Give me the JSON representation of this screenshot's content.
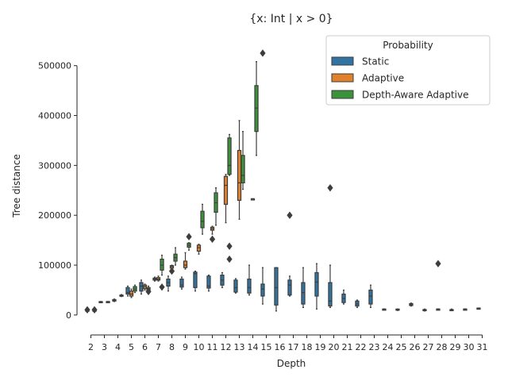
{
  "chart_data": {
    "type": "boxplot",
    "title": "{x: Int | x > 0}",
    "xlabel": "Depth",
    "ylabel": "Tree distance",
    "ylim": [
      -40000,
      560000
    ],
    "yticks": [
      0,
      100000,
      200000,
      300000,
      400000,
      500000
    ],
    "ytick_labels": [
      "0",
      "100000",
      "200000",
      "300000",
      "400000",
      "500000"
    ],
    "categories": [
      "2",
      "3",
      "4",
      "5",
      "6",
      "7",
      "8",
      "9",
      "10",
      "11",
      "12",
      "13",
      "14",
      "15",
      "16",
      "17",
      "18",
      "19",
      "20",
      "21",
      "22",
      "23",
      "24",
      "25",
      "26",
      "27",
      "28",
      "29",
      "30",
      "31"
    ],
    "legend": {
      "title": "Probability",
      "placement": "top-right",
      "entries": [
        "Static",
        "Adaptive",
        "Depth-Aware Adaptive"
      ]
    },
    "series": [
      {
        "name": "Static",
        "color": "#3274a1",
        "boxes": [
          {
            "cat": "2",
            "min": 10000,
            "q1": 10000,
            "median": 10000,
            "q3": 10000,
            "max": 10000,
            "outliers": [
              10500
            ]
          },
          {
            "cat": "3",
            "min": 26000,
            "q1": 26000,
            "median": 26000,
            "q3": 27000,
            "max": 27000,
            "outliers": []
          },
          {
            "cat": "4",
            "min": 27000,
            "q1": 28000,
            "median": 29000,
            "q3": 31000,
            "max": 32000,
            "outliers": []
          },
          {
            "cat": "5",
            "min": 38000,
            "q1": 42000,
            "median": 45000,
            "q3": 55000,
            "max": 58000,
            "outliers": []
          },
          {
            "cat": "6",
            "min": 42000,
            "q1": 48000,
            "median": 58000,
            "q3": 65000,
            "max": 70000,
            "outliers": []
          },
          {
            "cat": "7",
            "min": 68000,
            "q1": 70000,
            "median": 72000,
            "q3": 74000,
            "max": 76000,
            "outliers": []
          },
          {
            "cat": "8",
            "min": 48000,
            "q1": 58000,
            "median": 65000,
            "q3": 72000,
            "max": 78000,
            "outliers": []
          },
          {
            "cat": "9",
            "min": 52000,
            "q1": 56000,
            "median": 60000,
            "q3": 72000,
            "max": 76000,
            "outliers": []
          },
          {
            "cat": "10",
            "min": 48000,
            "q1": 55000,
            "median": 83000,
            "q3": 86000,
            "max": 88000,
            "outliers": []
          },
          {
            "cat": "11",
            "min": 48000,
            "q1": 54000,
            "median": 58000,
            "q3": 78000,
            "max": 80000,
            "outliers": []
          },
          {
            "cat": "12",
            "min": 55000,
            "q1": 60000,
            "median": 70000,
            "q3": 80000,
            "max": 85000,
            "outliers": []
          },
          {
            "cat": "13",
            "min": 44000,
            "q1": 46000,
            "median": 55000,
            "q3": 70000,
            "max": 73000,
            "outliers": []
          },
          {
            "cat": "14",
            "min": 40000,
            "q1": 44000,
            "median": 55000,
            "q3": 72000,
            "max": 100000,
            "outliers": []
          },
          {
            "cat": "15",
            "min": 22000,
            "q1": 38000,
            "median": 52000,
            "q3": 62000,
            "max": 95000,
            "outliers": [
              525000
            ]
          },
          {
            "cat": "16",
            "min": 8000,
            "q1": 20000,
            "median": 55000,
            "q3": 95000,
            "max": 95000,
            "outliers": []
          },
          {
            "cat": "17",
            "min": 38000,
            "q1": 40000,
            "median": 60000,
            "q3": 70000,
            "max": 78000,
            "outliers": [
              200000
            ]
          },
          {
            "cat": "18",
            "min": 15000,
            "q1": 22000,
            "median": 45000,
            "q3": 65000,
            "max": 95000,
            "outliers": []
          },
          {
            "cat": "19",
            "min": 12000,
            "q1": 38000,
            "median": 66000,
            "q3": 85000,
            "max": 103000,
            "outliers": []
          },
          {
            "cat": "20",
            "min": 15000,
            "q1": 18000,
            "median": 28000,
            "q3": 65000,
            "max": 100000,
            "outliers": [
              255000
            ]
          },
          {
            "cat": "21",
            "min": 22000,
            "q1": 25000,
            "median": 33000,
            "q3": 42000,
            "max": 50000,
            "outliers": []
          },
          {
            "cat": "22",
            "min": 15000,
            "q1": 18000,
            "median": 22000,
            "q3": 28000,
            "max": 30000,
            "outliers": []
          },
          {
            "cat": "23",
            "min": 15000,
            "q1": 22000,
            "median": 38000,
            "q3": 50000,
            "max": 60000,
            "outliers": []
          },
          {
            "cat": "24",
            "min": 11000,
            "q1": 11000,
            "median": 12000,
            "q3": 12000,
            "max": 12000,
            "outliers": []
          },
          {
            "cat": "25",
            "min": 9000,
            "q1": 10000,
            "median": 11000,
            "q3": 12000,
            "max": 12000,
            "outliers": []
          },
          {
            "cat": "26",
            "min": 18000,
            "q1": 19000,
            "median": 21000,
            "q3": 23000,
            "max": 24000,
            "outliers": []
          },
          {
            "cat": "27",
            "min": 8000,
            "q1": 9000,
            "median": 10000,
            "q3": 11000,
            "max": 12000,
            "outliers": []
          },
          {
            "cat": "28",
            "min": 12000,
            "q1": 12000,
            "median": 12000,
            "q3": 12000,
            "max": 12000,
            "outliers": [
              103000
            ]
          },
          {
            "cat": "29",
            "min": 9000,
            "q1": 9000,
            "median": 10000,
            "q3": 11000,
            "max": 12000,
            "outliers": []
          },
          {
            "cat": "30",
            "min": 12000,
            "q1": 12000,
            "median": 12000,
            "q3": 12000,
            "max": 12000,
            "outliers": []
          },
          {
            "cat": "31",
            "min": 12000,
            "q1": 12000,
            "median": 13000,
            "q3": 14000,
            "max": 14000,
            "outliers": []
          }
        ]
      },
      {
        "name": "Adaptive",
        "color": "#e1812c",
        "boxes": [
          {
            "cat": "5",
            "min": 35000,
            "q1": 38000,
            "median": 42000,
            "q3": 48000,
            "max": 52000,
            "outliers": []
          },
          {
            "cat": "6",
            "min": 50000,
            "q1": 53000,
            "median": 57000,
            "q3": 60000,
            "max": 62000,
            "outliers": []
          },
          {
            "cat": "7",
            "min": 68000,
            "q1": 70000,
            "median": 72000,
            "q3": 75000,
            "max": 78000,
            "outliers": []
          },
          {
            "cat": "8",
            "min": 90000,
            "q1": 94000,
            "median": 97000,
            "q3": 99000,
            "max": 100000,
            "outliers": [
              88000
            ]
          },
          {
            "cat": "9",
            "min": 92000,
            "q1": 95000,
            "median": 100000,
            "q3": 108000,
            "max": 125000,
            "outliers": []
          },
          {
            "cat": "10",
            "min": 122000,
            "q1": 128000,
            "median": 135000,
            "q3": 140000,
            "max": 142000,
            "outliers": []
          },
          {
            "cat": "11",
            "min": 162000,
            "q1": 170000,
            "median": 173000,
            "q3": 176000,
            "max": 178000,
            "outliers": [
              152000
            ]
          },
          {
            "cat": "12",
            "min": 185000,
            "q1": 222000,
            "median": 260000,
            "q3": 278000,
            "max": 282000,
            "outliers": []
          },
          {
            "cat": "13",
            "min": 192000,
            "q1": 230000,
            "median": 265000,
            "q3": 330000,
            "max": 390000,
            "outliers": []
          },
          {
            "cat": "14",
            "min": 233000,
            "q1": 233000,
            "median": 233000,
            "q3": 233000,
            "max": 233000,
            "outliers": []
          }
        ]
      },
      {
        "name": "Depth-Aware Adaptive",
        "color": "#3a923a",
        "boxes": [
          {
            "cat": "2",
            "min": 10000,
            "q1": 10000,
            "median": 10000,
            "q3": 10000,
            "max": 10000,
            "outliers": [
              10500
            ]
          },
          {
            "cat": "3",
            "min": 26000,
            "q1": 26000,
            "median": 27000,
            "q3": 27000,
            "max": 27000,
            "outliers": []
          },
          {
            "cat": "4",
            "min": 37000,
            "q1": 38000,
            "median": 39000,
            "q3": 40000,
            "max": 41000,
            "outliers": []
          },
          {
            "cat": "5",
            "min": 45000,
            "q1": 48000,
            "median": 52000,
            "q3": 57000,
            "max": 60000,
            "outliers": []
          },
          {
            "cat": "6",
            "min": 48000,
            "q1": 50000,
            "median": 52000,
            "q3": 55000,
            "max": 58000,
            "outliers": [
              47000
            ]
          },
          {
            "cat": "7",
            "min": 80000,
            "q1": 90000,
            "median": 100000,
            "q3": 112000,
            "max": 120000,
            "outliers": [
              56000
            ]
          },
          {
            "cat": "8",
            "min": 100000,
            "q1": 108000,
            "median": 115000,
            "q3": 122000,
            "max": 135000,
            "outliers": []
          },
          {
            "cat": "9",
            "min": 130000,
            "q1": 136000,
            "median": 140000,
            "q3": 144000,
            "max": 145000,
            "outliers": [
              157000
            ]
          },
          {
            "cat": "10",
            "min": 162000,
            "q1": 175000,
            "median": 188000,
            "q3": 208000,
            "max": 222000,
            "outliers": []
          },
          {
            "cat": "11",
            "min": 180000,
            "q1": 206000,
            "median": 225000,
            "q3": 245000,
            "max": 255000,
            "outliers": []
          },
          {
            "cat": "12",
            "min": 280000,
            "q1": 282000,
            "median": 300000,
            "q3": 355000,
            "max": 362000,
            "outliers": [
              112000,
              138000
            ]
          },
          {
            "cat": "13",
            "min": 252000,
            "q1": 265000,
            "median": 280000,
            "q3": 320000,
            "max": 368000,
            "outliers": []
          },
          {
            "cat": "14",
            "min": 320000,
            "q1": 368000,
            "median": 415000,
            "q3": 460000,
            "max": 508000,
            "outliers": []
          }
        ]
      }
    ]
  }
}
